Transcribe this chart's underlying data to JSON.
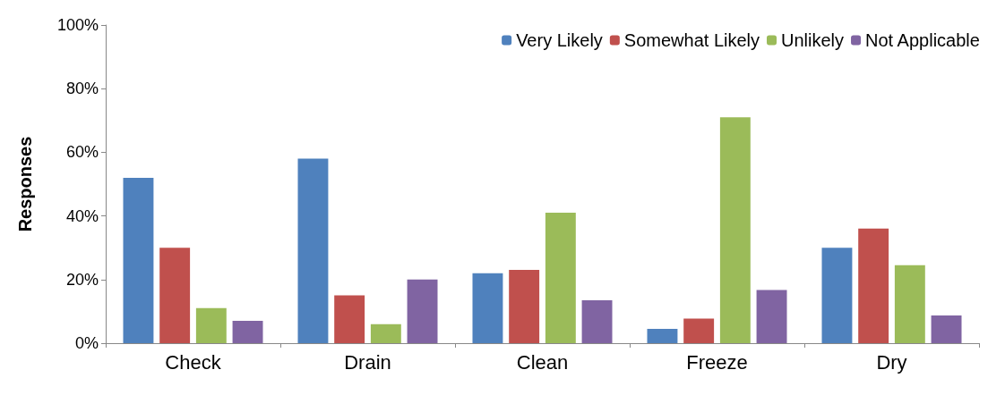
{
  "chart_data": {
    "type": "bar",
    "ylabel": "Responses",
    "categories": [
      "Check",
      "Drain",
      "Clean",
      "Freeze",
      "Dry"
    ],
    "series": [
      {
        "name": "Very Likely",
        "color": "#4f81bd",
        "values": [
          52,
          58,
          22,
          4.5,
          30
        ]
      },
      {
        "name": "Somewhat Likely",
        "color": "#c0504d",
        "values": [
          30,
          15,
          23,
          7.7,
          36
        ]
      },
      {
        "name": "Unlikely",
        "color": "#9bbb59",
        "values": [
          11,
          6,
          41,
          71,
          24.5
        ]
      },
      {
        "name": "Not Applicable",
        "color": "#8064a2",
        "values": [
          7,
          20,
          13.5,
          16.7,
          8.7
        ]
      }
    ],
    "ylim": [
      0,
      100
    ],
    "yticks": [
      {
        "value": 0,
        "label": "0%"
      },
      {
        "value": 20,
        "label": "20%"
      },
      {
        "value": 40,
        "label": "40%"
      },
      {
        "value": 60,
        "label": "60%"
      },
      {
        "value": 80,
        "label": "80%"
      },
      {
        "value": 100,
        "label": "100%"
      }
    ],
    "grid": false,
    "legend": "top right"
  }
}
